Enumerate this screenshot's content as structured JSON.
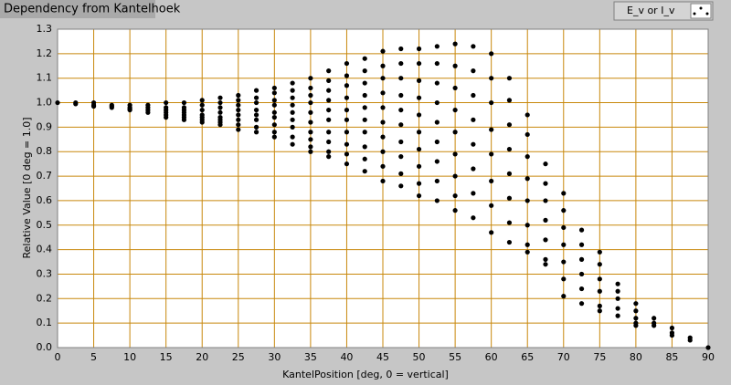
{
  "chart_data": {
    "type": "scatter",
    "title": "Dependency from Kantelhoek",
    "xlabel": "KantelPosition [deg, 0 = vertical]",
    "ylabel": "Relative Value [0 deg = 1.0]",
    "xlim": [
      0,
      90
    ],
    "ylim": [
      0,
      1.3
    ],
    "xticks": [
      0,
      5,
      10,
      15,
      20,
      25,
      30,
      35,
      40,
      45,
      50,
      55,
      60,
      65,
      70,
      75,
      80,
      85,
      90
    ],
    "yticks": [
      {
        "value": 0,
        "label": "0.0"
      },
      0.1,
      0.2,
      0.3,
      0.4,
      0.5,
      0.6,
      0.7,
      0.8,
      0.9,
      {
        "value": 1,
        "label": "1.0"
      },
      1.1,
      1.2,
      1.3
    ],
    "grid": true,
    "grid_color": "#c8880c",
    "legend": "top-right",
    "series": [
      {
        "name": "E_v or I_v",
        "color": "#000000",
        "x": [
          0,
          2.5,
          2.5,
          5,
          5,
          5,
          7.5,
          7.5,
          7.5,
          10,
          10,
          10,
          10,
          12.5,
          12.5,
          12.5,
          12.5,
          15,
          15,
          15,
          15,
          15,
          15,
          17.5,
          17.5,
          17.5,
          17.5,
          17.5,
          17.5,
          17.5,
          20,
          20,
          20,
          20,
          20,
          20,
          20,
          22.5,
          22.5,
          22.5,
          22.5,
          22.5,
          22.5,
          22.5,
          22.5,
          25,
          25,
          25,
          25,
          25,
          25,
          25,
          25,
          27.5,
          27.5,
          27.5,
          27.5,
          27.5,
          27.5,
          27.5,
          27.5,
          30,
          30,
          30,
          30,
          30,
          30,
          30,
          30,
          30,
          32.5,
          32.5,
          32.5,
          32.5,
          32.5,
          32.5,
          32.5,
          32.5,
          32.5,
          35,
          35,
          35,
          35,
          35,
          35,
          35,
          35,
          35,
          35,
          37.5,
          37.5,
          37.5,
          37.5,
          37.5,
          37.5,
          37.5,
          37.5,
          37.5,
          37.5,
          40,
          40,
          40,
          40,
          40,
          40,
          40,
          40,
          40,
          40,
          42.5,
          42.5,
          42.5,
          42.5,
          42.5,
          42.5,
          42.5,
          42.5,
          42.5,
          42.5,
          45,
          45,
          45,
          45,
          45,
          45,
          45,
          45,
          45,
          45,
          47.5,
          47.5,
          47.5,
          47.5,
          47.5,
          47.5,
          47.5,
          47.5,
          47.5,
          47.5,
          50,
          50,
          50,
          50,
          50,
          50,
          50,
          50,
          50,
          50,
          52.5,
          52.5,
          52.5,
          52.5,
          52.5,
          52.5,
          52.5,
          52.5,
          52.5,
          55,
          55,
          55,
          55,
          55,
          55,
          55,
          55,
          55,
          57.5,
          57.5,
          57.5,
          57.5,
          57.5,
          57.5,
          57.5,
          57.5,
          60,
          60,
          60,
          60,
          60,
          60,
          60,
          60,
          62.5,
          62.5,
          62.5,
          62.5,
          62.5,
          62.5,
          62.5,
          62.5,
          65,
          65,
          65,
          65,
          65,
          65,
          65,
          65,
          67.5,
          67.5,
          67.5,
          67.5,
          67.5,
          67.5,
          67.5,
          70,
          70,
          70,
          70,
          70,
          70,
          70,
          72.5,
          72.5,
          72.5,
          72.5,
          72.5,
          72.5,
          75,
          75,
          75,
          75,
          75,
          75,
          77.5,
          77.5,
          77.5,
          77.5,
          77.5,
          80,
          80,
          80,
          80,
          80,
          82.5,
          82.5,
          82.5,
          85,
          85,
          85,
          87.5,
          87.5,
          90
        ],
        "values": [
          1.0,
          1.0,
          0.995,
          1.0,
          0.99,
          0.985,
          0.99,
          0.985,
          0.98,
          0.99,
          0.98,
          0.975,
          0.97,
          0.99,
          0.98,
          0.97,
          0.96,
          1.0,
          0.98,
          0.97,
          0.96,
          0.95,
          0.94,
          1.0,
          0.98,
          0.97,
          0.96,
          0.95,
          0.94,
          0.93,
          1.01,
          0.99,
          0.97,
          0.95,
          0.94,
          0.93,
          0.92,
          1.02,
          1.0,
          0.98,
          0.96,
          0.94,
          0.93,
          0.92,
          0.91,
          1.03,
          1.01,
          0.99,
          0.97,
          0.95,
          0.93,
          0.91,
          0.89,
          1.05,
          1.02,
          1.0,
          0.97,
          0.95,
          0.93,
          0.9,
          0.88,
          1.06,
          1.04,
          1.01,
          0.99,
          0.96,
          0.94,
          0.91,
          0.88,
          0.86,
          1.08,
          1.05,
          1.02,
          0.99,
          0.96,
          0.93,
          0.9,
          0.86,
          0.83,
          1.1,
          1.06,
          1.03,
          1.0,
          0.96,
          0.92,
          0.88,
          0.85,
          0.82,
          0.8,
          1.13,
          1.09,
          1.05,
          1.01,
          0.97,
          0.93,
          0.88,
          0.84,
          0.8,
          0.78,
          1.16,
          1.11,
          1.07,
          1.02,
          0.97,
          0.93,
          0.88,
          0.83,
          0.79,
          0.75,
          1.18,
          1.13,
          1.08,
          1.03,
          0.98,
          0.93,
          0.88,
          0.82,
          0.77,
          0.72,
          1.21,
          1.15,
          1.1,
          1.04,
          0.98,
          0.92,
          0.86,
          0.8,
          0.74,
          0.68,
          1.22,
          1.16,
          1.1,
          1.03,
          0.97,
          0.91,
          0.84,
          0.78,
          0.71,
          0.66,
          1.22,
          1.16,
          1.09,
          1.02,
          0.95,
          0.88,
          0.81,
          0.74,
          0.67,
          0.62,
          1.23,
          1.16,
          1.08,
          1.0,
          0.92,
          0.84,
          0.76,
          0.68,
          0.6,
          1.24,
          1.15,
          1.06,
          0.97,
          0.88,
          0.79,
          0.7,
          0.62,
          0.56,
          1.23,
          1.13,
          1.03,
          0.93,
          0.83,
          0.73,
          0.63,
          0.53,
          1.2,
          1.1,
          1.0,
          0.89,
          0.79,
          0.68,
          0.58,
          0.47,
          1.1,
          1.01,
          0.91,
          0.81,
          0.71,
          0.61,
          0.51,
          0.43,
          0.95,
          0.87,
          0.78,
          0.69,
          0.6,
          0.5,
          0.42,
          0.39,
          0.75,
          0.67,
          0.6,
          0.52,
          0.44,
          0.36,
          0.34,
          0.63,
          0.56,
          0.49,
          0.42,
          0.35,
          0.28,
          0.21,
          0.48,
          0.42,
          0.36,
          0.3,
          0.24,
          0.18,
          0.39,
          0.34,
          0.28,
          0.23,
          0.17,
          0.15,
          0.26,
          0.23,
          0.2,
          0.16,
          0.13,
          0.18,
          0.15,
          0.12,
          0.1,
          0.09,
          0.12,
          0.1,
          0.09,
          0.08,
          0.06,
          0.05,
          0.04,
          0.03,
          0.0
        ]
      }
    ]
  }
}
